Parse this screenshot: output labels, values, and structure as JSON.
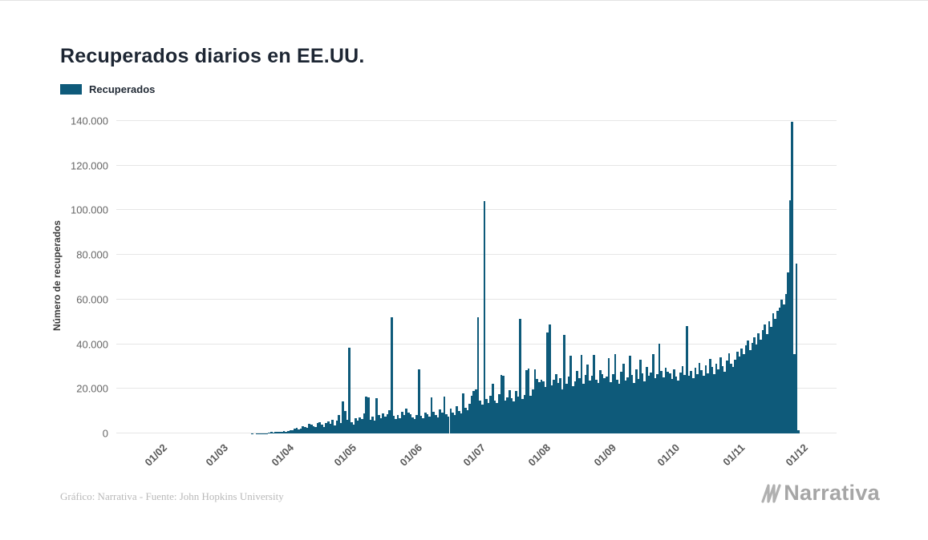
{
  "page": {
    "title": "Recuperados diarios en EE.UU.",
    "footer_credit": "Gráfico: Narrativa - Fuente: John Hopkins University",
    "brand": "Narrativa",
    "brand_color": "#a6a6a6"
  },
  "chart_data": {
    "type": "bar",
    "title": "Recuperados diarios en EE.UU.",
    "ylabel": "Número de recuperados",
    "xlabel": "",
    "legend": [
      "Recuperados"
    ],
    "legend_position": "top-left",
    "grid": true,
    "ylim": [
      0,
      140000
    ],
    "ytick_step": 20000,
    "ytick_labels": [
      "0",
      "20.000",
      "40.000",
      "60.000",
      "80.000",
      "100.000",
      "120.000",
      "140.000"
    ],
    "xtick_labels": [
      "01/02",
      "01/03",
      "01/04",
      "01/05",
      "01/06",
      "01/07",
      "01/08",
      "01/09",
      "01/10",
      "01/11",
      "01/12"
    ],
    "xtick_indices": [
      0,
      29,
      60,
      90,
      121,
      151,
      182,
      213,
      243,
      274,
      304
    ],
    "bar_color": "#0e5a7a",
    "series": [
      {
        "name": "Recuperados",
        "values": [
          0,
          0,
          0,
          0,
          0,
          0,
          0,
          0,
          0,
          0,
          0,
          0,
          0,
          0,
          0,
          0,
          0,
          0,
          3,
          0,
          0,
          0,
          0,
          0,
          5,
          0,
          0,
          0,
          0,
          0,
          0,
          2,
          0,
          4,
          0,
          6,
          8,
          5,
          10,
          12,
          9,
          15,
          18,
          14,
          22,
          30,
          26,
          38,
          45,
          60,
          85,
          110,
          180,
          420,
          700,
          510,
          640,
          820,
          740,
          610,
          920,
          580,
          1150,
          1520,
          1280,
          2050,
          2600,
          1750,
          2300,
          3400,
          2900,
          2450,
          4300,
          3800,
          3250,
          2700,
          4600,
          5200,
          3900,
          2950,
          4800,
          5500,
          4150,
          6100,
          3600,
          5800,
          8400,
          4700,
          14300,
          10200,
          6100,
          38300,
          5200,
          4100,
          6800,
          5900,
          7100,
          6300,
          8900,
          16600,
          16200,
          6100,
          7400,
          5800,
          15800,
          8200,
          6700,
          9100,
          7600,
          8800,
          10400,
          52000,
          7900,
          6500,
          8300,
          7000,
          9600,
          8100,
          11200,
          9400,
          8700,
          7200,
          6400,
          8100,
          28800,
          7800,
          6900,
          9300,
          8500,
          7400,
          16100,
          9800,
          8200,
          7100,
          10600,
          9200,
          16400,
          8800,
          7600,
          11300,
          9500,
          8300,
          12100,
          10200,
          9100,
          17800,
          11600,
          10400,
          13200,
          16900,
          19200,
          19800,
          52200,
          14600,
          13100,
          104000,
          15400,
          13800,
          16700,
          22300,
          14900,
          13500,
          17600,
          26200,
          25800,
          14700,
          16300,
          19400,
          15800,
          14200,
          18900,
          16500,
          51200,
          15300,
          17100,
          28400,
          29100,
          16800,
          19700,
          28600,
          24300,
          22900,
          24100,
          23300,
          20800,
          45300,
          49000,
          21600,
          23900,
          26400,
          22700,
          24800,
          19900,
          44200,
          22100,
          25600,
          34700,
          21300,
          23500,
          27900,
          24600,
          35200,
          22400,
          26100,
          30800,
          23700,
          25900,
          35100,
          24200,
          22600,
          28300,
          26700,
          24900,
          25400,
          33800,
          22900,
          26700,
          35600,
          24100,
          22300,
          27800,
          31200,
          23600,
          25100,
          34900,
          26300,
          22800,
          28700,
          24500,
          33200,
          26900,
          23400,
          29800,
          25700,
          27300,
          35400,
          24800,
          26500,
          40200,
          28100,
          25300,
          29400,
          27600,
          26800,
          24300,
          28900,
          25600,
          23700,
          27400,
          30100,
          26200,
          48100,
          25800,
          27900,
          24600,
          29300,
          26400,
          31700,
          28200,
          25900,
          30600,
          27100,
          33400,
          29800,
          26700,
          31200,
          28600,
          34100,
          30300,
          27800,
          32600,
          35800,
          31400,
          29700,
          33200,
          36800,
          34500,
          38100,
          35700,
          39400,
          41800,
          37300,
          40600,
          43200,
          39800,
          44700,
          42100,
          46300,
          48900,
          44500,
          50200,
          47600,
          53800,
          51300,
          54900,
          56400,
          60100,
          57800,
          62300,
          72100,
          104300,
          139700,
          35500,
          76200,
          1600
        ]
      }
    ]
  }
}
